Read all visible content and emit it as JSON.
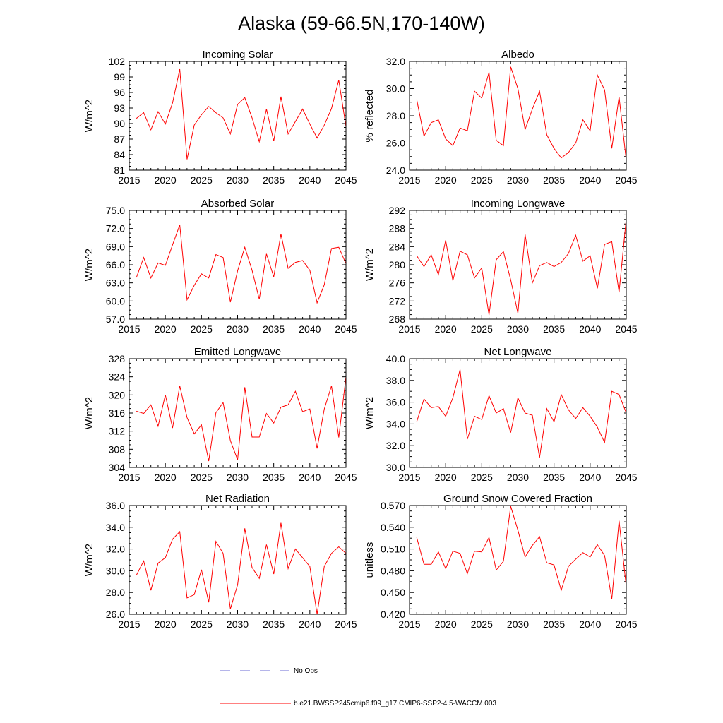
{
  "figure": {
    "title": "Alaska (59-66.5N,170-140W)",
    "line_color": "#ff0000",
    "obs_color": "#6b6bd6"
  },
  "legend": {
    "obs_label": "No Obs",
    "model_label": "b.e21.BWSSP245cmip6.f09_g17.CMIP6-SSP2-4.5-WACCM.003"
  },
  "chart_data": [
    {
      "type": "line",
      "title": "Incoming Solar",
      "xlabel": "",
      "ylabel": "W/m^2",
      "xlim": [
        2015,
        2045
      ],
      "ylim": [
        81,
        102
      ],
      "xticks": [
        2015,
        2020,
        2025,
        2030,
        2035,
        2040,
        2045
      ],
      "xtick_labels": [
        "2015",
        "2020",
        "2025",
        "2030",
        "2035",
        "2040",
        "2045"
      ],
      "yticks": [
        81,
        84,
        87,
        90,
        93,
        96,
        99,
        102
      ],
      "ytick_labels": [
        "81",
        "84",
        "87",
        "90",
        "93",
        "96",
        "99",
        "102"
      ],
      "x": [
        2016,
        2017,
        2018,
        2019,
        2020,
        2021,
        2022,
        2023,
        2024,
        2025,
        2026,
        2027,
        2028,
        2029,
        2030,
        2031,
        2032,
        2033,
        2034,
        2035,
        2036,
        2037,
        2038,
        2039,
        2040,
        2041,
        2042,
        2043,
        2044,
        2045
      ],
      "series": [
        {
          "name": "b.e21.BWSSP245cmip6.f09_g17.CMIP6-SSP2-4.5-WACCM.003",
          "values": [
            91.0,
            92.1,
            88.8,
            92.3,
            89.9,
            94.0,
            100.5,
            83.1,
            89.7,
            91.7,
            93.3,
            92.1,
            91.1,
            88.0,
            93.7,
            95.0,
            91.1,
            86.5,
            92.8,
            86.6,
            95.2,
            88.0,
            90.4,
            92.8,
            89.9,
            87.2,
            89.7,
            92.9,
            98.4,
            89.4
          ]
        }
      ]
    },
    {
      "type": "line",
      "title": "Albedo",
      "xlabel": "",
      "ylabel": "% reflected",
      "xlim": [
        2015,
        2045
      ],
      "ylim": [
        24,
        32
      ],
      "xticks": [
        2015,
        2020,
        2025,
        2030,
        2035,
        2040,
        2045
      ],
      "xtick_labels": [
        "2015",
        "2020",
        "2025",
        "2030",
        "2035",
        "2040",
        "2045"
      ],
      "yticks": [
        24,
        26,
        28,
        30,
        32
      ],
      "ytick_labels": [
        "24.0",
        "26.0",
        "28.0",
        "30.0",
        "32.0"
      ],
      "x": [
        2016,
        2017,
        2018,
        2019,
        2020,
        2021,
        2022,
        2023,
        2024,
        2025,
        2026,
        2027,
        2028,
        2029,
        2030,
        2031,
        2032,
        2033,
        2034,
        2035,
        2036,
        2037,
        2038,
        2039,
        2040,
        2041,
        2042,
        2043,
        2044,
        2045
      ],
      "series": [
        {
          "name": "b.e21.BWSSP245cmip6.f09_g17.CMIP6-SSP2-4.5-WACCM.003",
          "values": [
            29.2,
            26.5,
            27.5,
            27.7,
            26.3,
            25.8,
            27.1,
            26.9,
            29.8,
            29.3,
            31.2,
            26.2,
            25.8,
            31.6,
            30.0,
            27.0,
            28.5,
            29.8,
            26.6,
            25.6,
            24.9,
            25.3,
            26.0,
            27.7,
            26.9,
            31.0,
            29.9,
            25.6,
            29.4,
            24.7
          ]
        }
      ]
    },
    {
      "type": "line",
      "title": "Absorbed Solar",
      "xlabel": "",
      "ylabel": "W/m^2",
      "xlim": [
        2015,
        2045
      ],
      "ylim": [
        57,
        75
      ],
      "xticks": [
        2015,
        2020,
        2025,
        2030,
        2035,
        2040,
        2045
      ],
      "xtick_labels": [
        "2015",
        "2020",
        "2025",
        "2030",
        "2035",
        "2040",
        "2045"
      ],
      "yticks": [
        57,
        60,
        63,
        66,
        69,
        72,
        75
      ],
      "ytick_labels": [
        "57.0",
        "60.0",
        "63.0",
        "66.0",
        "69.0",
        "72.0",
        "75.0"
      ],
      "x": [
        2016,
        2017,
        2018,
        2019,
        2020,
        2021,
        2022,
        2023,
        2024,
        2025,
        2026,
        2027,
        2028,
        2029,
        2030,
        2031,
        2032,
        2033,
        2034,
        2035,
        2036,
        2037,
        2038,
        2039,
        2040,
        2041,
        2042,
        2043,
        2044,
        2045
      ],
      "series": [
        {
          "name": "b.e21.BWSSP245cmip6.f09_g17.CMIP6-SSP2-4.5-WACCM.003",
          "values": [
            63.9,
            67.2,
            63.8,
            66.3,
            65.9,
            69.3,
            72.6,
            60.2,
            62.6,
            64.5,
            63.8,
            67.7,
            67.2,
            59.8,
            65.0,
            68.9,
            65.1,
            60.3,
            67.8,
            64.0,
            71.1,
            65.4,
            66.4,
            66.7,
            65.1,
            59.7,
            62.7,
            68.7,
            68.9,
            66.2
          ]
        }
      ]
    },
    {
      "type": "line",
      "title": "Incoming Longwave",
      "xlabel": "",
      "ylabel": "W/m^2",
      "xlim": [
        2015,
        2045
      ],
      "ylim": [
        268,
        292
      ],
      "xticks": [
        2015,
        2020,
        2025,
        2030,
        2035,
        2040,
        2045
      ],
      "xtick_labels": [
        "2015",
        "2020",
        "2025",
        "2030",
        "2035",
        "2040",
        "2045"
      ],
      "yticks": [
        268,
        272,
        276,
        280,
        284,
        288,
        292
      ],
      "ytick_labels": [
        "268",
        "272",
        "276",
        "280",
        "284",
        "288",
        "292"
      ],
      "x": [
        2016,
        2017,
        2018,
        2019,
        2020,
        2021,
        2022,
        2023,
        2024,
        2025,
        2026,
        2027,
        2028,
        2029,
        2030,
        2031,
        2032,
        2033,
        2034,
        2035,
        2036,
        2037,
        2038,
        2039,
        2040,
        2041,
        2042,
        2043,
        2044,
        2045
      ],
      "series": [
        {
          "name": "b.e21.BWSSP245cmip6.f09_g17.CMIP6-SSP2-4.5-WACCM.003",
          "values": [
            282.0,
            279.6,
            282.2,
            277.8,
            285.4,
            276.5,
            283.0,
            282.2,
            277.1,
            279.3,
            268.9,
            281.1,
            282.9,
            276.7,
            269.3,
            286.7,
            276.0,
            279.8,
            280.5,
            279.6,
            280.5,
            282.5,
            286.5,
            280.8,
            282.0,
            274.8,
            284.5,
            285.1,
            273.9,
            290.2
          ]
        }
      ]
    },
    {
      "type": "line",
      "title": "Emitted Longwave",
      "xlabel": "",
      "ylabel": "W/m^2",
      "xlim": [
        2015,
        2045
      ],
      "ylim": [
        304,
        328
      ],
      "xticks": [
        2015,
        2020,
        2025,
        2030,
        2035,
        2040,
        2045
      ],
      "xtick_labels": [
        "2015",
        "2020",
        "2025",
        "2030",
        "2035",
        "2040",
        "2045"
      ],
      "yticks": [
        304,
        308,
        312,
        316,
        320,
        324,
        328
      ],
      "ytick_labels": [
        "304",
        "308",
        "312",
        "316",
        "320",
        "324",
        "328"
      ],
      "x": [
        2016,
        2017,
        2018,
        2019,
        2020,
        2021,
        2022,
        2023,
        2024,
        2025,
        2026,
        2027,
        2028,
        2029,
        2030,
        2031,
        2032,
        2033,
        2034,
        2035,
        2036,
        2037,
        2038,
        2039,
        2040,
        2041,
        2042,
        2043,
        2044,
        2045
      ],
      "series": [
        {
          "name": "b.e21.BWSSP245cmip6.f09_g17.CMIP6-SSP2-4.5-WACCM.003",
          "values": [
            316.4,
            315.9,
            317.8,
            313.1,
            320.0,
            312.7,
            322.0,
            315.0,
            311.4,
            313.4,
            305.4,
            316.1,
            318.3,
            309.9,
            305.7,
            321.7,
            310.7,
            310.7,
            315.9,
            313.8,
            317.3,
            317.8,
            320.8,
            316.3,
            316.9,
            308.2,
            316.9,
            322.0,
            310.6,
            324.0
          ]
        }
      ]
    },
    {
      "type": "line",
      "title": "Net Longwave",
      "xlabel": "",
      "ylabel": "W/m^2",
      "xlim": [
        2015,
        2045
      ],
      "ylim": [
        30,
        40
      ],
      "xticks": [
        2015,
        2020,
        2025,
        2030,
        2035,
        2040,
        2045
      ],
      "xtick_labels": [
        "2015",
        "2020",
        "2025",
        "2030",
        "2035",
        "2040",
        "2045"
      ],
      "yticks": [
        30,
        32,
        34,
        36,
        38,
        40
      ],
      "ytick_labels": [
        "30.0",
        "32.0",
        "34.0",
        "36.0",
        "38.0",
        "40.0"
      ],
      "x": [
        2016,
        2017,
        2018,
        2019,
        2020,
        2021,
        2022,
        2023,
        2024,
        2025,
        2026,
        2027,
        2028,
        2029,
        2030,
        2031,
        2032,
        2033,
        2034,
        2035,
        2036,
        2037,
        2038,
        2039,
        2040,
        2041,
        2042,
        2043,
        2044,
        2045
      ],
      "series": [
        {
          "name": "b.e21.BWSSP245cmip6.f09_g17.CMIP6-SSP2-4.5-WACCM.003",
          "values": [
            34.2,
            36.3,
            35.5,
            35.6,
            34.7,
            36.4,
            39.0,
            32.6,
            34.7,
            34.4,
            36.6,
            35.0,
            35.4,
            33.2,
            36.4,
            35.0,
            34.8,
            30.9,
            35.4,
            34.2,
            36.7,
            35.3,
            34.5,
            35.5,
            34.7,
            33.7,
            32.3,
            37.0,
            36.7,
            35.0
          ]
        }
      ]
    },
    {
      "type": "line",
      "title": "Net Radiation",
      "xlabel": "",
      "ylabel": "W/m^2",
      "xlim": [
        2015,
        2045
      ],
      "ylim": [
        26,
        36
      ],
      "xticks": [
        2015,
        2020,
        2025,
        2030,
        2035,
        2040,
        2045
      ],
      "xtick_labels": [
        "2015",
        "2020",
        "2025",
        "2030",
        "2035",
        "2040",
        "2045"
      ],
      "yticks": [
        26,
        28,
        30,
        32,
        34,
        36
      ],
      "ytick_labels": [
        "26.0",
        "28.0",
        "30.0",
        "32.0",
        "34.0",
        "36.0"
      ],
      "x": [
        2016,
        2017,
        2018,
        2019,
        2020,
        2021,
        2022,
        2023,
        2024,
        2025,
        2026,
        2027,
        2028,
        2029,
        2030,
        2031,
        2032,
        2033,
        2034,
        2035,
        2036,
        2037,
        2038,
        2039,
        2040,
        2041,
        2042,
        2043,
        2044,
        2045
      ],
      "series": [
        {
          "name": "b.e21.BWSSP245cmip6.f09_g17.CMIP6-SSP2-4.5-WACCM.003",
          "values": [
            29.6,
            30.9,
            28.2,
            30.7,
            31.2,
            32.9,
            33.6,
            27.5,
            27.8,
            30.1,
            27.1,
            32.7,
            31.6,
            26.5,
            28.7,
            33.9,
            30.3,
            29.3,
            32.4,
            29.7,
            34.4,
            30.2,
            32.0,
            31.2,
            30.4,
            26.0,
            30.4,
            31.6,
            32.2,
            31.6
          ]
        }
      ]
    },
    {
      "type": "line",
      "title": "Ground Snow Covered Fraction",
      "xlabel": "",
      "ylabel": "unitless",
      "xlim": [
        2015,
        2045
      ],
      "ylim": [
        0.42,
        0.57
      ],
      "xticks": [
        2015,
        2020,
        2025,
        2030,
        2035,
        2040,
        2045
      ],
      "xtick_labels": [
        "2015",
        "2020",
        "2025",
        "2030",
        "2035",
        "2040",
        "2045"
      ],
      "yticks": [
        0.42,
        0.45,
        0.48,
        0.51,
        0.54,
        0.57
      ],
      "ytick_labels": [
        "0.420",
        "0.450",
        "0.480",
        "0.510",
        "0.540",
        "0.570"
      ],
      "x": [
        2016,
        2017,
        2018,
        2019,
        2020,
        2021,
        2022,
        2023,
        2024,
        2025,
        2026,
        2027,
        2028,
        2029,
        2030,
        2031,
        2032,
        2033,
        2034,
        2035,
        2036,
        2037,
        2038,
        2039,
        2040,
        2041,
        2042,
        2043,
        2044,
        2045
      ],
      "series": [
        {
          "name": "b.e21.BWSSP245cmip6.f09_g17.CMIP6-SSP2-4.5-WACCM.003",
          "values": [
            0.526,
            0.489,
            0.489,
            0.506,
            0.483,
            0.507,
            0.504,
            0.476,
            0.507,
            0.506,
            0.526,
            0.481,
            0.493,
            0.569,
            0.536,
            0.499,
            0.515,
            0.527,
            0.491,
            0.488,
            0.453,
            0.486,
            0.496,
            0.505,
            0.499,
            0.516,
            0.501,
            0.441,
            0.549,
            0.458
          ]
        }
      ]
    }
  ]
}
